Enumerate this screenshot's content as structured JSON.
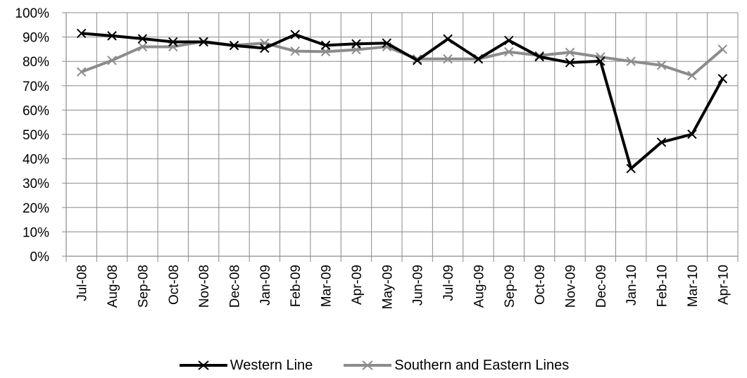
{
  "chart_data": {
    "type": "line",
    "categories": [
      "Jul-08",
      "Aug-08",
      "Sep-08",
      "Oct-08",
      "Nov-08",
      "Dec-08",
      "Jan-09",
      "Feb-09",
      "Mar-09",
      "Apr-09",
      "May-09",
      "Jun-09",
      "Jul-09",
      "Aug-09",
      "Sep-09",
      "Oct-09",
      "Nov-09",
      "Dec-09",
      "Jan-10",
      "Feb-10",
      "Mar-10",
      "Apr-10"
    ],
    "y_ticks": [
      "0%",
      "10%",
      "20%",
      "30%",
      "40%",
      "50%",
      "60%",
      "70%",
      "80%",
      "90%",
      "100%"
    ],
    "ylim": [
      0,
      100
    ],
    "grid": true,
    "legend_position": "bottom",
    "title": "",
    "xlabel": "",
    "ylabel": "",
    "series": [
      {
        "name": "Western Line",
        "color": "#000000",
        "marker": "x",
        "values": [
          91.5,
          90.5,
          89.3,
          88.0,
          88.0,
          86.5,
          85.4,
          91.0,
          86.6,
          87.2,
          87.5,
          80.4,
          89.2,
          81.0,
          88.6,
          81.9,
          79.5,
          80.1,
          36.0,
          46.8,
          50.1,
          72.9
        ]
      },
      {
        "name": "Southern and Eastern Lines",
        "color": "#8c8c8c",
        "marker": "x",
        "values": [
          75.7,
          80.4,
          86.0,
          86.0,
          88.2,
          86.6,
          87.5,
          84.2,
          84.0,
          84.8,
          86.0,
          81.0,
          81.0,
          81.0,
          83.9,
          82.4,
          83.7,
          81.8,
          80.0,
          78.4,
          74.2,
          85.0
        ]
      }
    ]
  }
}
